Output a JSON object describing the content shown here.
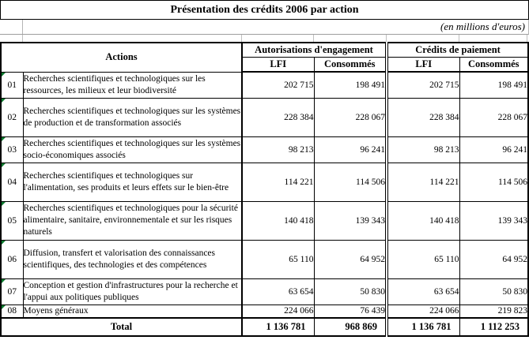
{
  "title": "Présentation des crédits 2006 par action",
  "subtitle": "(en millions d'euros)",
  "colors": {
    "border_black": "#000000",
    "gridline_gray": "#c0c0c0",
    "flag_green": "#0b7a2e"
  },
  "header": {
    "actions": "Actions",
    "groups": [
      {
        "label": "Autorisations d'engagement",
        "sub": [
          "LFI",
          "Consommés"
        ]
      },
      {
        "label": "Crédits de paiement",
        "sub": [
          "LFI",
          "Consommés"
        ]
      }
    ]
  },
  "table": {
    "rows": [
      {
        "num": "01",
        "label": "Recherches scientifiques et technologiques sur les ressources, les milieux et leur biodiversité",
        "values": [
          "202 715",
          "198 491",
          "202 715",
          "198 491"
        ]
      },
      {
        "num": "02",
        "label": "Recherches scientifiques et technologiques sur les systèmes de production et de transformation associés",
        "values": [
          "228 384",
          "228 067",
          "228 384",
          "228 067"
        ]
      },
      {
        "num": "03",
        "label": "Recherches scientifiques et technologiques sur les systèmes socio-économiques associés",
        "values": [
          "98 213",
          "96 241",
          "98 213",
          "96 241"
        ]
      },
      {
        "num": "04",
        "label": "Recherches scientifiques et technologiques sur l'alimentation, ses produits et leurs effets sur le bien-être",
        "values": [
          "114 221",
          "114 506",
          "114 221",
          "114 506"
        ]
      },
      {
        "num": "05",
        "label": "Recherches scientifiques et technologiques pour la sécurité alimentaire, sanitaire, environnementale et sur les risques naturels",
        "values": [
          "140 418",
          "139 343",
          "140 418",
          "139 343"
        ]
      },
      {
        "num": "06",
        "label": "Diffusion, transfert et valorisation des connaissances scientifiques, des technologies et des compétences",
        "values": [
          "65 110",
          "64 952",
          "65 110",
          "64 952"
        ]
      },
      {
        "num": "07",
        "label": "Conception et gestion d'infrastructures pour la recherche et l'appui aux politiques publiques",
        "values": [
          "63 654",
          "50 830",
          "63 654",
          "50 830"
        ]
      },
      {
        "num": "08",
        "label": "Moyens généraux",
        "values": [
          "224 066",
          "76 439",
          "224 066",
          "219 823"
        ]
      }
    ],
    "total": {
      "label": "Total",
      "values": [
        "1 136 781",
        "968 869",
        "1 136 781",
        "1 112 253"
      ]
    }
  }
}
